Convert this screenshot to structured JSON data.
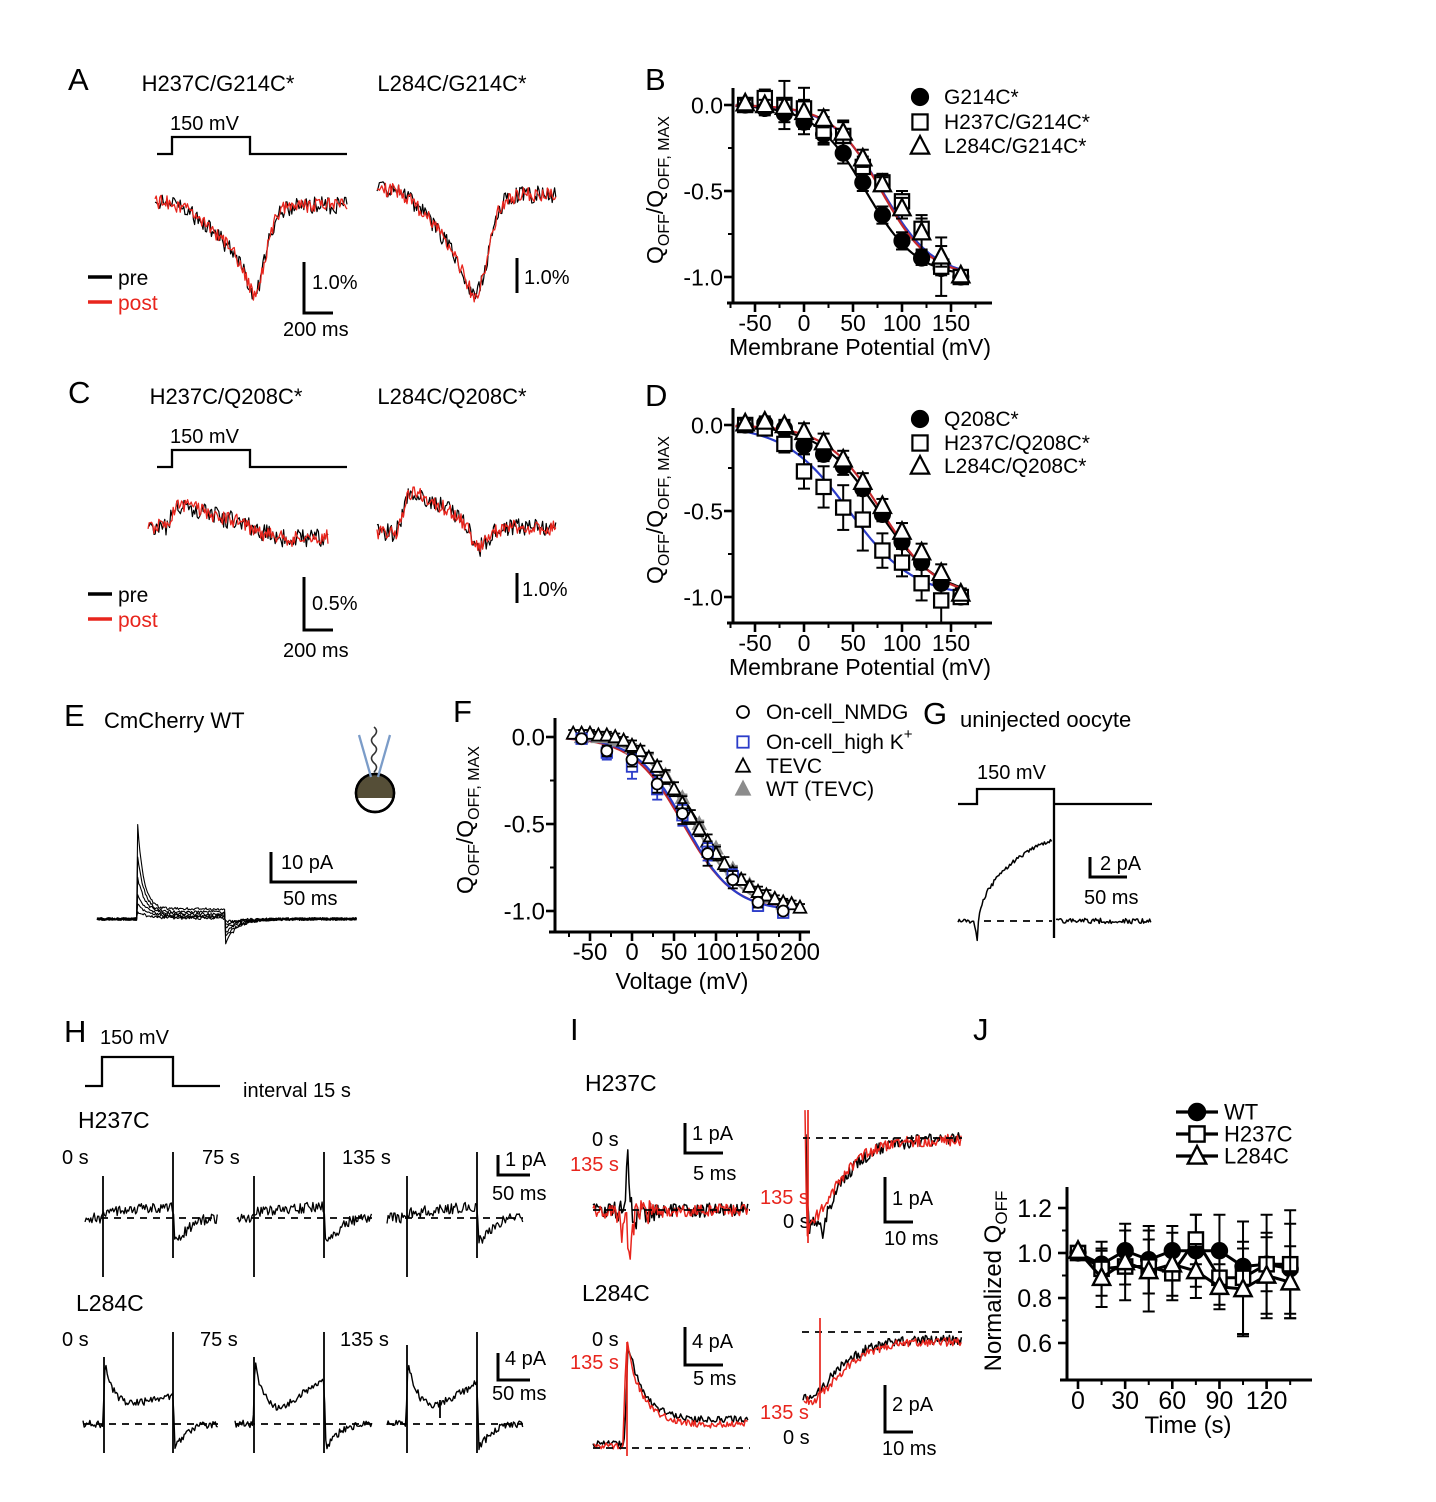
{
  "figure": {
    "background": "#ffffff"
  },
  "colors": {
    "trace_red": "#e8251d",
    "fit_red": "#c5282d",
    "fit_blue": "#2b3cc9",
    "gray": "#8c8c8c",
    "black": "#000000",
    "pipette_blue": "#7b9cc8",
    "oocyte_fill": "#554e37"
  },
  "panels": {
    "A": {
      "label": "A",
      "title_left": "H237C/G214C*",
      "title_right": "L284C/G214C*",
      "pulse_label": "150 mV",
      "legend_pre": "pre",
      "legend_post": "post",
      "scale_left_v": "1.0%",
      "scale_left_h": "200 ms",
      "scale_right_v": "1.0%"
    },
    "B": {
      "label": "B"
    },
    "C": {
      "label": "C",
      "title_left": "H237C/Q208C*",
      "title_right": "L284C/Q208C*",
      "pulse_label": "150 mV",
      "legend_pre": "pre",
      "legend_post": "post",
      "scale_left_v": "0.5%",
      "scale_left_h": "200 ms",
      "scale_right_v": "1.0%"
    },
    "D": {
      "label": "D"
    },
    "E": {
      "label": "E",
      "title": "CmCherry WT",
      "scale_v": "10 pA",
      "scale_h": "50 ms"
    },
    "F": {
      "label": "F"
    },
    "G": {
      "label": "G",
      "title": "uninjected oocyte",
      "pulse_label": "150 mV",
      "scale_v": "2 pA",
      "scale_h": "50 ms"
    },
    "H": {
      "label": "H",
      "pulse_label": "150 mV",
      "interval_label": "interval 15 s",
      "row1_name": "H237C",
      "row2_name": "L284C",
      "t0": "0 s",
      "t1": "75 s",
      "t2": "135 s",
      "scale1_v": "1 pA",
      "scale1_h": "50 ms",
      "scale2_v": "4 pA",
      "scale2_h": "50 ms"
    },
    "I": {
      "label": "I",
      "g1_name": "H237C",
      "g2_name": "L284C",
      "t_black": "0 s",
      "t_red": "135 s",
      "g1l_v": "1 pA",
      "g1l_h": "5 ms",
      "g1r_v": "1 pA",
      "g1r_h": "10 ms",
      "g2l_v": "4 pA",
      "g2l_h": "5 ms",
      "g2r_v": "2 pA",
      "g2r_h": "10 ms"
    }
  },
  "chart_data": [
    {
      "id": "B",
      "type": "scatter",
      "xlabel": "Membrane Potential (mV)",
      "ylabel_parts": [
        [
          "Q",
          0
        ],
        [
          "OFF",
          -1
        ],
        [
          "/Q",
          0
        ],
        [
          "OFF, MAX",
          -1
        ]
      ],
      "xticks": [
        -50,
        0,
        50,
        100,
        150
      ],
      "xtick_labels": [
        "-50",
        "0",
        "50",
        "100",
        "150"
      ],
      "yticks": [
        0,
        -0.5,
        -1
      ],
      "ytick_labels": [
        "0.0",
        "-0.5",
        "-1.0"
      ],
      "xlim": [
        -80,
        192
      ],
      "ylim": [
        -1.25,
        0.12
      ],
      "grid": false,
      "legend_position": "upper right",
      "x": [
        -60,
        -40,
        -20,
        0,
        20,
        40,
        60,
        80,
        100,
        120,
        140,
        160
      ],
      "series": [
        {
          "name": "G214C*",
          "marker": "circle",
          "filled": true,
          "color": "#000000",
          "y": [
            0,
            -0.02,
            -0.05,
            -0.1,
            -0.17,
            -0.28,
            -0.45,
            -0.64,
            -0.79,
            -0.89,
            -0.95,
            -1
          ],
          "err": [
            0.02,
            0.04,
            0.05,
            0.07,
            0.05,
            0.06,
            0.05,
            0.05,
            0.05,
            0.04,
            0.04,
            0.02
          ],
          "fit": {
            "v_half": 63,
            "slope": 26,
            "color": "#000000"
          }
        },
        {
          "name": "H237C/G214C*",
          "marker": "square",
          "filled": false,
          "color": "#000000",
          "y": [
            0,
            0.04,
            0,
            -0.02,
            -0.15,
            -0.18,
            -0.36,
            -0.45,
            -0.56,
            -0.72,
            -0.94,
            -1
          ],
          "err": [
            0.02,
            0.05,
            0.14,
            0.12,
            0.08,
            0.09,
            0.06,
            0.05,
            0.06,
            0.06,
            0.17,
            0.03
          ],
          "fit": {
            "v_half": 80,
            "slope": 26,
            "color": "#2b3cc9"
          }
        },
        {
          "name": "L284C/G214C*",
          "marker": "triangle",
          "filled": false,
          "color": "#000000",
          "y": [
            0.01,
            0,
            -0.01,
            -0.04,
            -0.08,
            -0.16,
            -0.31,
            -0.46,
            -0.6,
            -0.74,
            -0.88,
            -0.99
          ],
          "err": [
            0.02,
            0.03,
            0.04,
            0.07,
            0.05,
            0.06,
            0.05,
            0.04,
            0.06,
            0.1,
            0.06,
            0.03
          ],
          "fit": {
            "v_half": 79,
            "slope": 25,
            "color": "#c5282d"
          }
        }
      ]
    },
    {
      "id": "D",
      "type": "scatter",
      "xlabel": "Membrane Potential (mV)",
      "ylabel_parts": [
        [
          "Q",
          0
        ],
        [
          "OFF",
          -1
        ],
        [
          "/Q",
          0
        ],
        [
          "OFF, MAX",
          -1
        ]
      ],
      "xticks": [
        -50,
        0,
        50,
        100,
        150
      ],
      "xtick_labels": [
        "-50",
        "0",
        "50",
        "100",
        "150"
      ],
      "yticks": [
        0,
        -0.5,
        -1
      ],
      "ytick_labels": [
        "0.0",
        "-0.5",
        "-1.0"
      ],
      "xlim": [
        -80,
        192
      ],
      "ylim": [
        -1.25,
        0.12
      ],
      "grid": false,
      "legend_position": "upper right",
      "x": [
        -60,
        -40,
        -20,
        0,
        20,
        40,
        60,
        80,
        100,
        120,
        140,
        160
      ],
      "series": [
        {
          "name": "Q208C*",
          "marker": "circle",
          "filled": true,
          "color": "#000000",
          "y": [
            0,
            0.01,
            -0.02,
            -0.12,
            -0.17,
            -0.24,
            -0.37,
            -0.52,
            -0.68,
            -0.8,
            -0.92,
            -1
          ],
          "err": [
            0.02,
            0.03,
            0.04,
            0.05,
            0.04,
            0.05,
            0.04,
            0.04,
            0.04,
            0.04,
            0.03,
            0.02
          ],
          "fit": {
            "v_half": 76,
            "slope": 30,
            "color": "#000000"
          }
        },
        {
          "name": "H237C/Q208C*",
          "marker": "square",
          "filled": false,
          "color": "#000000",
          "y": [
            0,
            -0.02,
            -0.11,
            -0.27,
            -0.36,
            -0.48,
            -0.55,
            -0.73,
            -0.8,
            -0.92,
            -1.02,
            -1
          ],
          "err": [
            0.02,
            0.04,
            0.05,
            0.1,
            0.12,
            0.13,
            0.18,
            0.1,
            0.08,
            0.1,
            0.13,
            0.03
          ],
          "fit": {
            "v_half": 46,
            "slope": 33,
            "color": "#2b3cc9"
          }
        },
        {
          "name": "L284C/Q208C*",
          "marker": "triangle",
          "filled": false,
          "color": "#000000",
          "y": [
            0.01,
            0.02,
            0,
            -0.04,
            -0.1,
            -0.2,
            -0.33,
            -0.47,
            -0.62,
            -0.74,
            -0.86,
            -0.98
          ],
          "err": [
            0.02,
            0.03,
            0.03,
            0.05,
            0.05,
            0.05,
            0.05,
            0.04,
            0.05,
            0.05,
            0.05,
            0.03
          ],
          "fit": {
            "v_half": 79,
            "slope": 28,
            "color": "#c5282d"
          }
        }
      ]
    },
    {
      "id": "F",
      "type": "scatter",
      "xlabel": "Voltage (mV)",
      "ylabel_parts": [
        [
          "Q",
          0
        ],
        [
          "OFF",
          -1
        ],
        [
          "/Q",
          0
        ],
        [
          "OFF, MAX",
          -1
        ]
      ],
      "xticks": [
        -50,
        0,
        50,
        100,
        150,
        200
      ],
      "xtick_labels": [
        "-50",
        "0",
        "50",
        "100",
        "150",
        "200"
      ],
      "yticks": [
        0,
        -0.5,
        -1
      ],
      "ytick_labels": [
        "0.0",
        "-0.5",
        "-1.0"
      ],
      "xlim": [
        -85,
        210
      ],
      "ylim": [
        -1.25,
        0.12
      ],
      "grid": false,
      "legend_position": "upper right",
      "series": [
        {
          "name": "On-cell_NMDG",
          "name_parts": [
            [
              "On-cell_NMDG",
              0
            ]
          ],
          "marker": "circle",
          "filled": false,
          "color": "#000000",
          "x": [
            -60,
            -30,
            0,
            30,
            60,
            90,
            120,
            150,
            180
          ],
          "y": [
            -0.01,
            -0.08,
            -0.13,
            -0.27,
            -0.44,
            -0.67,
            -0.82,
            -0.95,
            -1
          ],
          "err": [
            0.02,
            0.03,
            0.04,
            0.05,
            0.06,
            0.07,
            0.05,
            0.03,
            0.02
          ],
          "fit": {
            "v_half": 61,
            "slope": 30,
            "color": "#c5282d"
          }
        },
        {
          "name": "On-cell_high K+",
          "name_parts": [
            [
              "On-cell_high K",
              0
            ],
            [
              "+",
              1
            ]
          ],
          "marker": "square",
          "filled": false,
          "color": "#2b3cc9",
          "x": [
            -60,
            -30,
            0,
            30,
            60,
            90,
            120,
            150,
            180
          ],
          "y": [
            -0.01,
            -0.09,
            -0.17,
            -0.3,
            -0.45,
            -0.66,
            -0.8,
            -0.97,
            -1.01
          ],
          "err": [
            0.02,
            0.04,
            0.07,
            0.06,
            0.06,
            0.05,
            0.04,
            0.03,
            0.02
          ],
          "fit": {
            "v_half": 63,
            "slope": 29,
            "color": "#2b3cc9"
          }
        },
        {
          "name": "TEVC",
          "name_parts": [
            [
              "TEVC",
              0
            ]
          ],
          "marker": "triangle",
          "filled": false,
          "color": "#000000",
          "x": [
            -70,
            -60,
            -50,
            -40,
            -30,
            -20,
            -10,
            0,
            10,
            20,
            30,
            40,
            50,
            60,
            70,
            80,
            90,
            100,
            110,
            120,
            130,
            140,
            150,
            160,
            170,
            180,
            190,
            200
          ],
          "y": [
            0.02,
            0.02,
            0.02,
            0.01,
            0.01,
            0,
            -0.02,
            -0.05,
            -0.08,
            -0.12,
            -0.17,
            -0.23,
            -0.3,
            -0.38,
            -0.46,
            -0.53,
            -0.6,
            -0.67,
            -0.73,
            -0.78,
            -0.82,
            -0.86,
            -0.89,
            -0.91,
            -0.93,
            -0.95,
            -0.96,
            -0.98
          ],
          "err": [
            0.02,
            0.02,
            0.02,
            0.02,
            0.02,
            0.02,
            0.02,
            0.03,
            0.03,
            0.03,
            0.03,
            0.04,
            0.04,
            0.04,
            0.04,
            0.04,
            0.04,
            0.04,
            0.04,
            0.03,
            0.03,
            0.03,
            0.03,
            0.03,
            0.02,
            0.02,
            0.02,
            0.02
          ],
          "fit": {
            "v_half": 80,
            "slope": 31,
            "color": "#000000"
          }
        },
        {
          "name": "WT (TEVC)",
          "name_parts": [
            [
              "WT (TEVC)",
              0
            ]
          ],
          "marker": "triangle",
          "filled": true,
          "color": "#8c8c8c",
          "x": [
            -60,
            -40,
            -20,
            0,
            20,
            40,
            60,
            80,
            100,
            120,
            140,
            160,
            180
          ],
          "y": [
            0,
            0,
            -0.02,
            -0.06,
            -0.12,
            -0.22,
            -0.35,
            -0.5,
            -0.64,
            -0.76,
            -0.85,
            -0.92,
            -0.96
          ],
          "err": [
            0.02,
            0.02,
            0.02,
            0.02,
            0.02,
            0.02,
            0.02,
            0.02,
            0.02,
            0.02,
            0.02,
            0.02,
            0.02
          ],
          "fit": {
            "v_half": 74,
            "slope": 30,
            "color": "#8c8c8c"
          }
        }
      ]
    },
    {
      "id": "J",
      "type": "line",
      "xlabel": "Time (s)",
      "ylabel_parts": [
        [
          "Normalized Q",
          0
        ],
        [
          "OFF",
          -1
        ]
      ],
      "xticks": [
        0,
        30,
        60,
        90,
        120
      ],
      "xtick_labels": [
        "0",
        "30",
        "60",
        "90",
        "120"
      ],
      "yticks": [
        1.2,
        1,
        0.8,
        0.6
      ],
      "ytick_labels": [
        "1.2",
        "1.0",
        "0.8",
        "0.6"
      ],
      "xlim": [
        -8,
        150
      ],
      "ylim": [
        0.45,
        1.3
      ],
      "grid": false,
      "legend_position": "upper right",
      "x": [
        0,
        15,
        30,
        45,
        60,
        75,
        90,
        105,
        120,
        135
      ],
      "series": [
        {
          "name": "WT",
          "marker": "circle",
          "filled": true,
          "color": "#000000",
          "connect": true,
          "y": [
            1,
            0.95,
            1.01,
            0.97,
            1.01,
            1.01,
            1.01,
            0.94,
            0.95,
            0.93
          ],
          "err": [
            0.02,
            0.06,
            0.09,
            0.15,
            0.11,
            0.16,
            0.16,
            0.08,
            0.12,
            0.2
          ]
        },
        {
          "name": "H237C",
          "marker": "square",
          "filled": false,
          "color": "#000000",
          "connect": true,
          "y": [
            1,
            0.93,
            0.94,
            0.94,
            0.91,
            1.06,
            0.89,
            0.89,
            0.95,
            0.95
          ],
          "err": [
            0.02,
            0.12,
            0.08,
            0.12,
            0.12,
            0.11,
            0.12,
            0.25,
            0.22,
            0.24
          ]
        },
        {
          "name": "L284C",
          "marker": "triangle",
          "filled": false,
          "color": "#000000",
          "connect": true,
          "y": [
            1.01,
            0.89,
            0.96,
            0.92,
            0.95,
            0.92,
            0.85,
            0.84,
            0.9,
            0.87
          ],
          "err": [
            0.02,
            0.13,
            0.17,
            0.18,
            0.14,
            0.12,
            0.1,
            0.21,
            0.19,
            0.16
          ]
        }
      ]
    }
  ]
}
